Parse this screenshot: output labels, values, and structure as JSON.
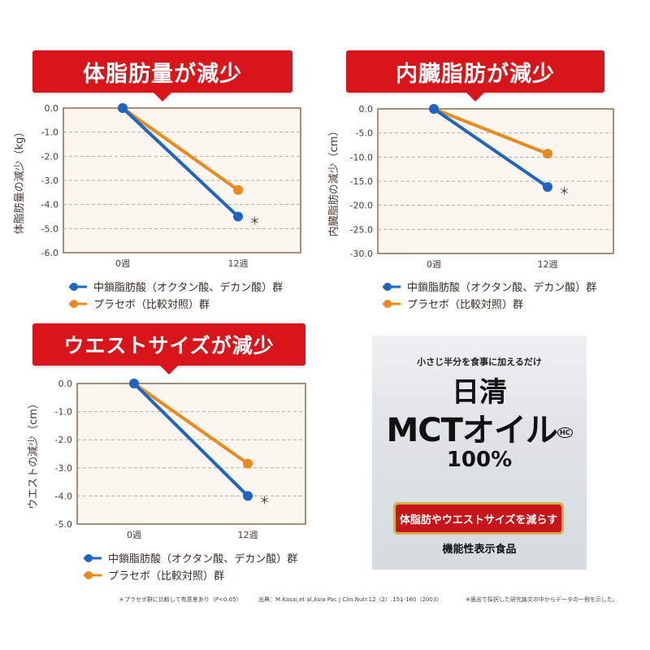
{
  "colors": {
    "red": "#d7151b",
    "blue": "#1f64c2",
    "orange": "#ea8a1e",
    "panel": "#fbf7f0",
    "panel_border": "#8b6a4f"
  },
  "chart_data": [
    {
      "type": "line",
      "title": "体脂肪量が減少",
      "ylabel": "体脂肪量の減少（kg）",
      "xlabel": "",
      "categories": [
        "0週",
        "12週"
      ],
      "yticks": [
        "0.0",
        "-1.0",
        "-2.0",
        "-3.0",
        "-4.0",
        "-5.0",
        "-6.0"
      ],
      "ylim": [
        -6,
        0
      ],
      "grid": true,
      "series": [
        {
          "name": "中鎖脂肪酸（オクタン酸、デカン酸）群",
          "color": "#1f64c2",
          "values": [
            0,
            -4.5
          ]
        },
        {
          "name": "プラセボ（比較対照）群",
          "color": "#ea8a1e",
          "values": [
            0,
            -3.4
          ]
        }
      ],
      "annotation": "＊"
    },
    {
      "type": "line",
      "title": "内臓脂肪が減少",
      "ylabel": "内臓脂肪の減少（cm）",
      "xlabel": "",
      "categories": [
        "0週",
        "12週"
      ],
      "yticks": [
        "0.0",
        "-5.0",
        "-10.0",
        "-15.0",
        "-20.0",
        "-25.0",
        "-30.0"
      ],
      "ylim": [
        -30,
        0
      ],
      "grid": true,
      "series": [
        {
          "name": "中鎖脂肪酸（オクタン酸、デカン酸）群",
          "color": "#1f64c2",
          "values": [
            0,
            -16.2
          ]
        },
        {
          "name": "プラセボ（比較対照）群",
          "color": "#ea8a1e",
          "values": [
            0,
            -9.3
          ]
        }
      ],
      "annotation": "＊"
    },
    {
      "type": "line",
      "title": "ウエストサイズが減少",
      "ylabel": "ウエストの減少（cm）",
      "xlabel": "",
      "categories": [
        "0週",
        "12週"
      ],
      "yticks": [
        "0.0",
        "-1.0",
        "-2.0",
        "-3.0",
        "-4.0",
        "-5.0"
      ],
      "ylim": [
        -5,
        0
      ],
      "grid": true,
      "series": [
        {
          "name": "中鎖脂肪酸（オクタン酸、デカン酸）群",
          "color": "#1f64c2",
          "values": [
            0,
            -4.0
          ]
        },
        {
          "name": "プラセボ（比較対照）群",
          "color": "#ea8a1e",
          "values": [
            0,
            -2.85
          ]
        }
      ],
      "annotation": "＊"
    }
  ],
  "product": {
    "tagline": "小さじ半分を食事に加えるだけ",
    "brand": "日清",
    "name": "MCTオイル",
    "mark": "HC",
    "percent": "100%",
    "claim": "体脂肪やウエストサイズを減らす",
    "category": "機能性表示食品"
  },
  "footer": {
    "note_significance": "＊プラセボ群に比較して有意差あり（P<0.05）",
    "source": "出典：M.Kasai,et al,Asia Pac J Clin.Nutr.12（2）.151-160（2003）",
    "note_data": "※届出で採択した研究論文の中からデータの一例を示した。"
  }
}
